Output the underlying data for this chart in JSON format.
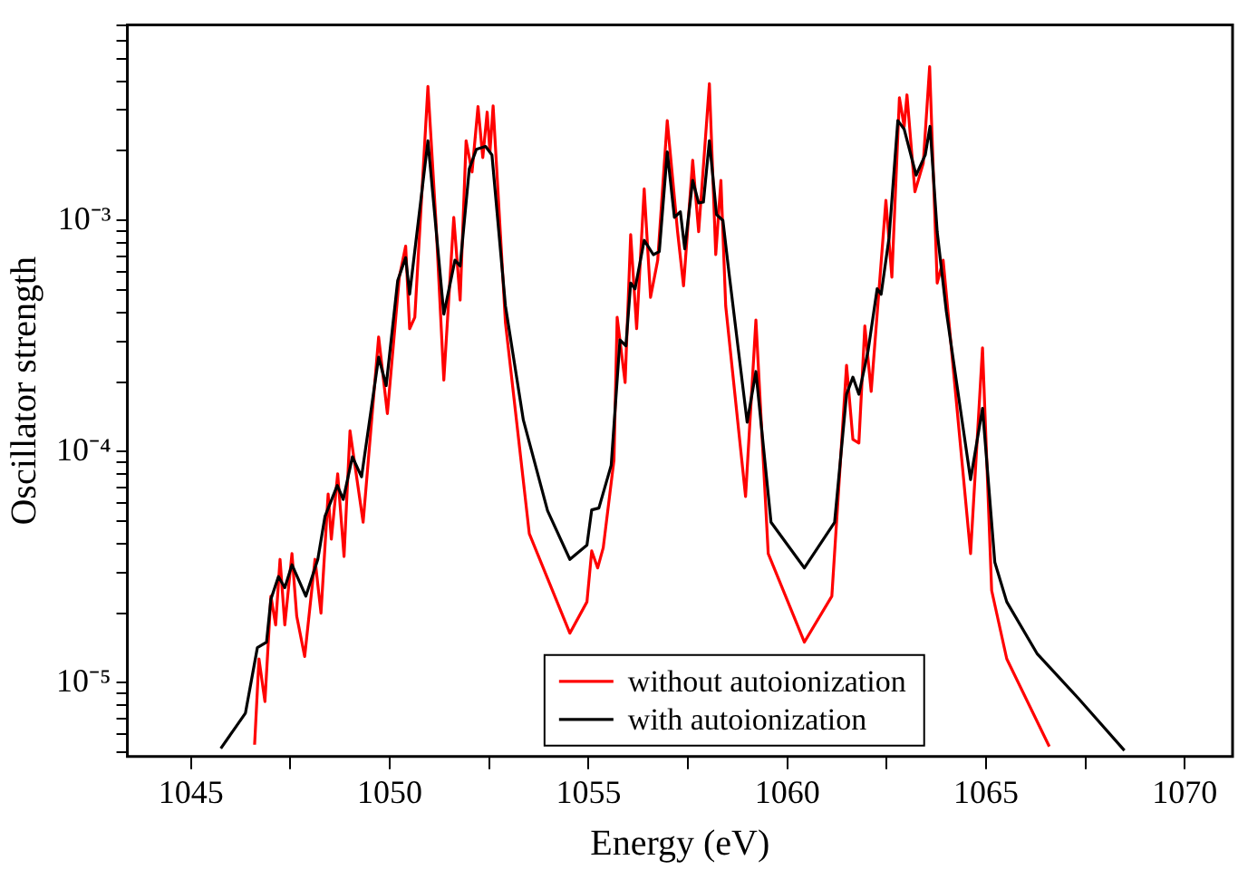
{
  "chart_data": {
    "type": "line",
    "xlabel": "Energy (eV)",
    "ylabel": "Oscillator strength",
    "log": "y",
    "grid": false,
    "legend": "bottom",
    "marker": "none",
    "line_style": "solid",
    "xlim": [
      1043.4,
      1071.2
    ],
    "xticks": [
      1045,
      {
        "value": 1047.5,
        "label": null
      },
      1050,
      {
        "value": 1052.5,
        "label": null
      },
      1055,
      {
        "value": 1057.5,
        "label": null
      },
      1060,
      {
        "value": 1062.5,
        "label": null
      },
      1065,
      {
        "value": 1067.5,
        "label": null
      },
      1070
    ],
    "ylim": [
      4.8e-06,
      0.007
    ],
    "yticks": [
      {
        "value": 5e-06,
        "label": null
      },
      {
        "value": 6e-06,
        "label": null
      },
      {
        "value": 7e-06,
        "label": null
      },
      {
        "value": 8e-06,
        "label": null
      },
      {
        "value": 9e-06,
        "label": null
      },
      {
        "value": 1e-05,
        "label": "10⁻⁵"
      },
      {
        "value": 2e-05,
        "label": null
      },
      {
        "value": 3e-05,
        "label": null
      },
      {
        "value": 4e-05,
        "label": null
      },
      {
        "value": 5e-05,
        "label": null
      },
      {
        "value": 6e-05,
        "label": null
      },
      {
        "value": 7e-05,
        "label": null
      },
      {
        "value": 8e-05,
        "label": null
      },
      {
        "value": 9e-05,
        "label": null
      },
      {
        "value": 0.0001,
        "label": "10⁻⁴"
      },
      {
        "value": 0.0002,
        "label": null
      },
      {
        "value": 0.0003,
        "label": null
      },
      {
        "value": 0.0004,
        "label": null
      },
      {
        "value": 0.0005,
        "label": null
      },
      {
        "value": 0.0006,
        "label": null
      },
      {
        "value": 0.0007,
        "label": null
      },
      {
        "value": 0.0008,
        "label": null
      },
      {
        "value": 0.0009,
        "label": null
      },
      {
        "value": 0.001,
        "label": "10⁻³"
      },
      {
        "value": 0.002,
        "label": null
      },
      {
        "value": 0.003,
        "label": null
      },
      {
        "value": 0.004,
        "label": null
      },
      {
        "value": 0.005,
        "label": null
      },
      {
        "value": 0.006,
        "label": null
      },
      {
        "value": 0.007,
        "label": null
      }
    ],
    "series": [
      {
        "name": "without autoionization",
        "color": "#ff0000",
        "x": [
          1046.6,
          1046.71,
          1046.86,
          1047.01,
          1047.13,
          1047.24,
          1047.36,
          1047.54,
          1047.66,
          1047.86,
          1048.12,
          1048.27,
          1048.45,
          1048.53,
          1048.69,
          1048.85,
          1049.0,
          1049.33,
          1049.72,
          1049.94,
          1050.24,
          1050.4,
          1050.5,
          1050.63,
          1050.96,
          1051.16,
          1051.36,
          1051.61,
          1051.77,
          1051.92,
          1052.07,
          1052.22,
          1052.34,
          1052.45,
          1052.52,
          1052.6,
          1052.91,
          1053.51,
          1054.53,
          1054.96,
          1055.08,
          1055.23,
          1055.37,
          1055.64,
          1055.72,
          1055.92,
          1056.06,
          1056.21,
          1056.4,
          1056.56,
          1056.74,
          1056.98,
          1057.24,
          1057.39,
          1057.62,
          1057.77,
          1058.04,
          1058.2,
          1058.33,
          1058.45,
          1058.95,
          1059.21,
          1059.52,
          1060.43,
          1061.12,
          1061.49,
          1061.65,
          1061.8,
          1061.95,
          1062.11,
          1062.48,
          1062.63,
          1062.82,
          1062.94,
          1063.01,
          1063.21,
          1063.42,
          1063.58,
          1063.77,
          1063.92,
          1064.61,
          1064.91,
          1065.14,
          1065.52,
          1066.59
        ],
        "values": [
          5.4e-06,
          1.27e-05,
          8.3e-06,
          2.37e-05,
          1.78e-05,
          3.42e-05,
          1.78e-05,
          3.62e-05,
          1.94e-05,
          1.3e-05,
          3.42e-05,
          2e-05,
          6.56e-05,
          4.18e-05,
          8.02e-05,
          3.52e-05,
          0.000123,
          4.95e-05,
          0.000313,
          0.000146,
          0.000568,
          0.000774,
          0.00034,
          0.000381,
          0.0038,
          0.001,
          0.000204,
          0.00103,
          0.000452,
          0.00221,
          0.00162,
          0.00311,
          0.00187,
          0.00294,
          0.00198,
          0.00313,
          0.000361,
          4.42e-05,
          1.64e-05,
          2.24e-05,
          3.72e-05,
          3.14e-05,
          3.84e-05,
          9.2e-05,
          0.000381,
          0.000199,
          0.000869,
          0.00034,
          0.00137,
          0.000465,
          0.000673,
          0.0027,
          0.000893,
          0.000521,
          0.00182,
          0.000893,
          0.0039,
          0.000711,
          0.00149,
          0.000427,
          6.4e-05,
          0.000371,
          3.62e-05,
          1.5e-05,
          2.37e-05,
          0.000236,
          0.000113,
          0.000109,
          0.00035,
          0.000182,
          0.00122,
          0.000568,
          0.00339,
          0.00255,
          0.00349,
          0.00133,
          0.00177,
          0.00462,
          0.000536,
          0.000673,
          3.62e-05,
          0.000281,
          2.51e-05,
          1.27e-05,
          5.3e-06
        ]
      },
      {
        "name": "with autoionization",
        "color": "#000000",
        "x": [
          1045.75,
          1046.37,
          1046.67,
          1046.9,
          1047.01,
          1047.2,
          1047.36,
          1047.54,
          1047.89,
          1048.19,
          1048.37,
          1048.68,
          1048.83,
          1049.06,
          1049.29,
          1049.72,
          1049.91,
          1050.2,
          1050.4,
          1050.5,
          1050.96,
          1051.36,
          1051.64,
          1051.77,
          1052.0,
          1052.18,
          1052.41,
          1052.57,
          1052.91,
          1053.36,
          1053.97,
          1054.53,
          1054.96,
          1055.08,
          1055.26,
          1055.57,
          1055.79,
          1055.94,
          1056.06,
          1056.17,
          1056.4,
          1056.63,
          1056.78,
          1056.98,
          1057.16,
          1057.31,
          1057.42,
          1057.62,
          1057.77,
          1057.89,
          1058.04,
          1058.22,
          1058.38,
          1058.53,
          1058.99,
          1059.21,
          1059.59,
          1060.43,
          1061.19,
          1061.49,
          1061.65,
          1061.8,
          1062.03,
          1062.26,
          1062.36,
          1062.56,
          1062.78,
          1062.94,
          1063.24,
          1063.47,
          1063.59,
          1063.77,
          1064.0,
          1064.61,
          1064.91,
          1065.22,
          1065.52,
          1066.28,
          1067.34,
          1068.48
        ],
        "values": [
          5.2e-06,
          7.4e-06,
          1.42e-05,
          1.5e-05,
          2.3e-05,
          2.88e-05,
          2.58e-05,
          3.24e-05,
          2.37e-05,
          3.42e-05,
          5.24e-05,
          7.14e-05,
          6.21e-05,
          9.5e-05,
          7.78e-05,
          0.000256,
          0.000193,
          0.00055,
          0.00069,
          0.00048,
          0.00221,
          0.000393,
          0.000673,
          0.000635,
          0.00167,
          0.00203,
          0.00209,
          0.00192,
          0.000427,
          0.000137,
          5.55e-05,
          3.42e-05,
          3.94e-05,
          5.6e-05,
          5.7e-05,
          8.73e-05,
          0.000304,
          0.000287,
          0.000536,
          0.000506,
          0.00082,
          0.000711,
          0.000733,
          0.00198,
          0.00103,
          0.00109,
          0.000753,
          0.00149,
          0.00119,
          0.0012,
          0.00221,
          0.00106,
          0.001,
          0.0006,
          0.000134,
          0.000222,
          4.95e-05,
          3.14e-05,
          4.95e-05,
          0.000177,
          0.00021,
          0.000177,
          0.000272,
          0.000506,
          0.000479,
          0.000843,
          0.0027,
          0.00248,
          0.00157,
          0.00192,
          0.00255,
          0.000893,
          0.000404,
          7.57e-05,
          0.000154,
          3.32e-05,
          2.24e-05,
          1.34e-05,
          8.5e-06,
          5.1e-06
        ]
      }
    ]
  }
}
